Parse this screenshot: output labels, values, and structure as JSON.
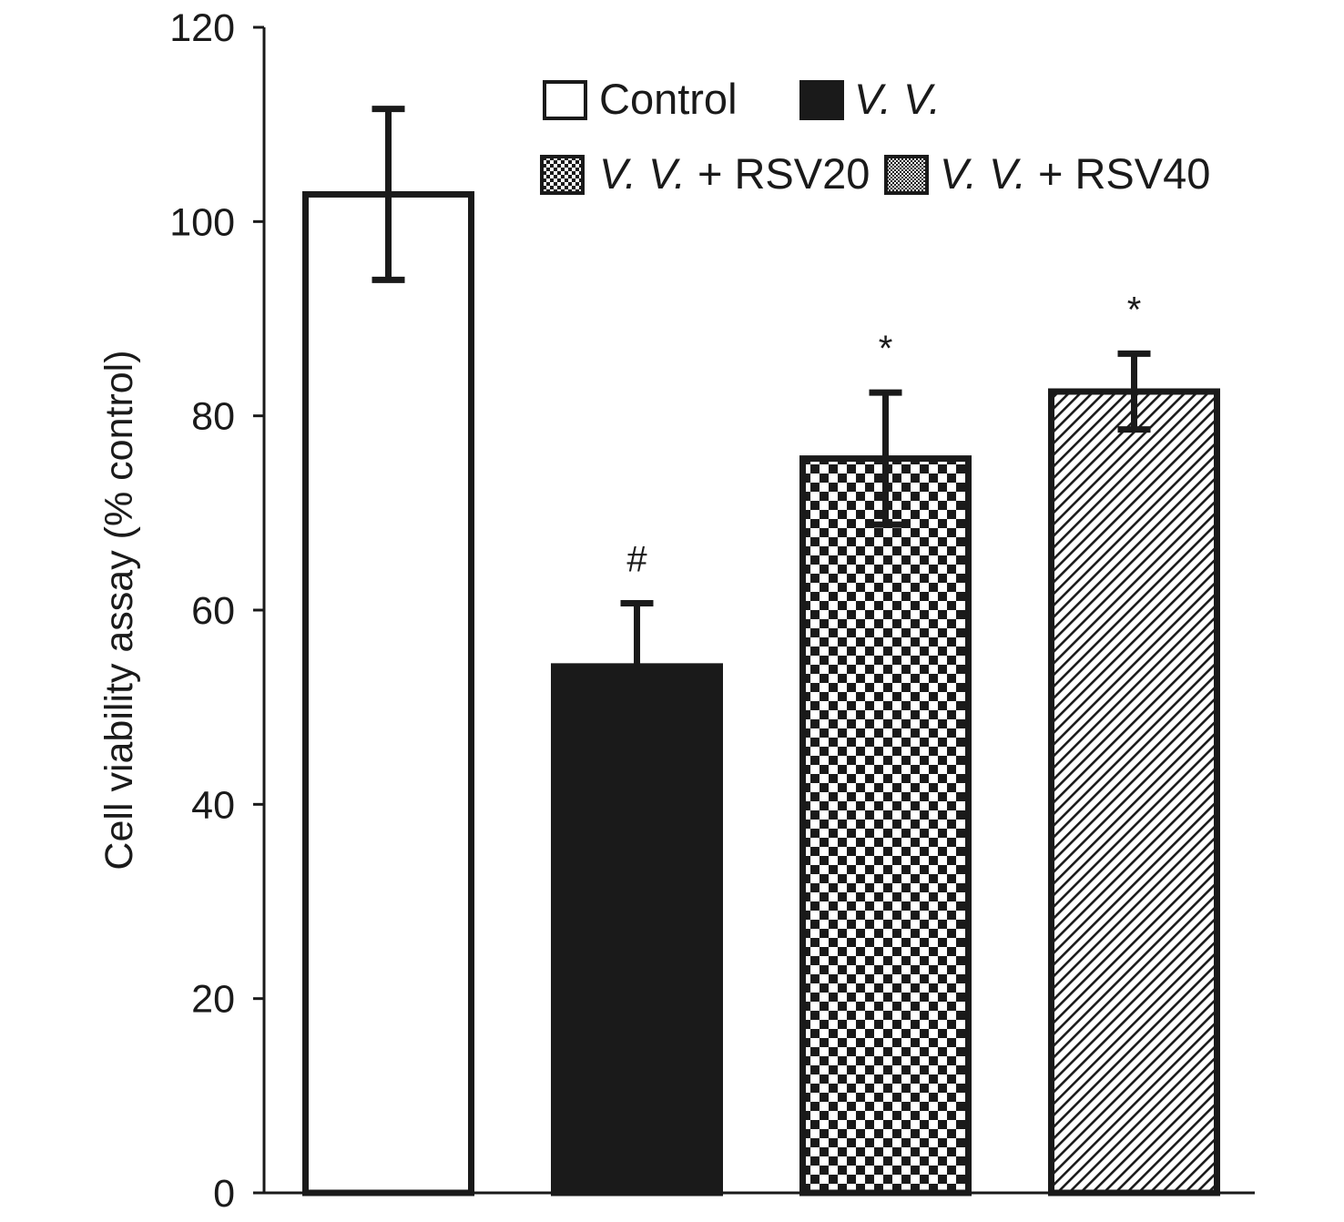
{
  "chart_data": {
    "type": "bar",
    "title": "",
    "xlabel": "",
    "ylabel": "Cell viability assay (% control)",
    "ylim": [
      0,
      120
    ],
    "yticks": [
      0,
      20,
      40,
      60,
      80,
      100,
      120
    ],
    "grid": false,
    "legend_position": "top-right",
    "categories": [
      "Control",
      "V. V.",
      "V. V. + RSV20",
      "V. V. + RSV40"
    ],
    "values": [
      102.8,
      54.2,
      75.6,
      82.5
    ],
    "errors": [
      8.8,
      6.5,
      6.8,
      3.9
    ],
    "fills": [
      "white",
      "black",
      "checker",
      "diagonal"
    ],
    "annotations": [
      "",
      "#",
      "*",
      "*"
    ],
    "legend": [
      {
        "italic": "",
        "plain": "Control"
      },
      {
        "italic": "V. V.",
        "plain": ""
      },
      {
        "italic": "V. V.",
        "plain": " + RSV20"
      },
      {
        "italic": "V. V.",
        "plain": " + RSV40"
      }
    ],
    "colors": {
      "ink": "#1a1a1a",
      "background": "#ffffff"
    }
  }
}
